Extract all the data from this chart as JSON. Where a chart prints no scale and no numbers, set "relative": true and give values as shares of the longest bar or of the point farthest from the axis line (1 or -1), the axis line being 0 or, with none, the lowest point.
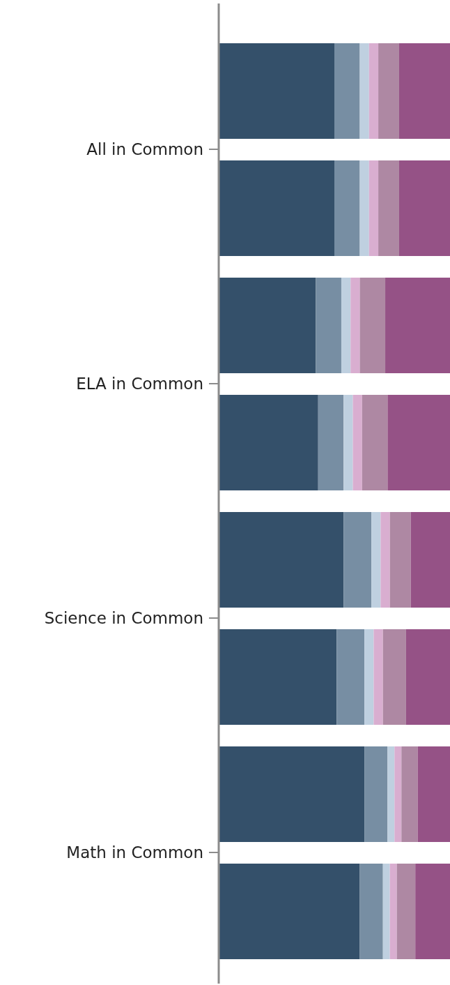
{
  "chart_data": {
    "type": "bar",
    "orientation": "horizontal",
    "stacked": true,
    "relative": true,
    "grid": false,
    "legend": false,
    "categories": [
      "All in Common",
      null,
      "ELA in Common",
      null,
      "Science in Common",
      null,
      "Math in Common",
      null
    ],
    "series": [
      {
        "color": "#34506a",
        "values": [
          0.5,
          0.5,
          0.42,
          0.43,
          0.54,
          0.51,
          0.63,
          0.61
        ]
      },
      {
        "color": "#778ea3",
        "values": [
          0.11,
          0.11,
          0.11,
          0.11,
          0.12,
          0.12,
          0.1,
          0.1
        ]
      },
      {
        "color": "#bfd0e0",
        "values": [
          0.04,
          0.04,
          0.04,
          0.04,
          0.04,
          0.04,
          0.03,
          0.03
        ]
      },
      {
        "color": "#d9aed0",
        "values": [
          0.04,
          0.04,
          0.04,
          0.04,
          0.04,
          0.04,
          0.03,
          0.03
        ]
      },
      {
        "color": "#ae88a3",
        "values": [
          0.09,
          0.09,
          0.11,
          0.11,
          0.09,
          0.1,
          0.07,
          0.08
        ]
      },
      {
        "color": "#955286",
        "values": [
          0.22,
          0.22,
          0.28,
          0.27,
          0.17,
          0.19,
          0.14,
          0.15
        ]
      }
    ]
  }
}
